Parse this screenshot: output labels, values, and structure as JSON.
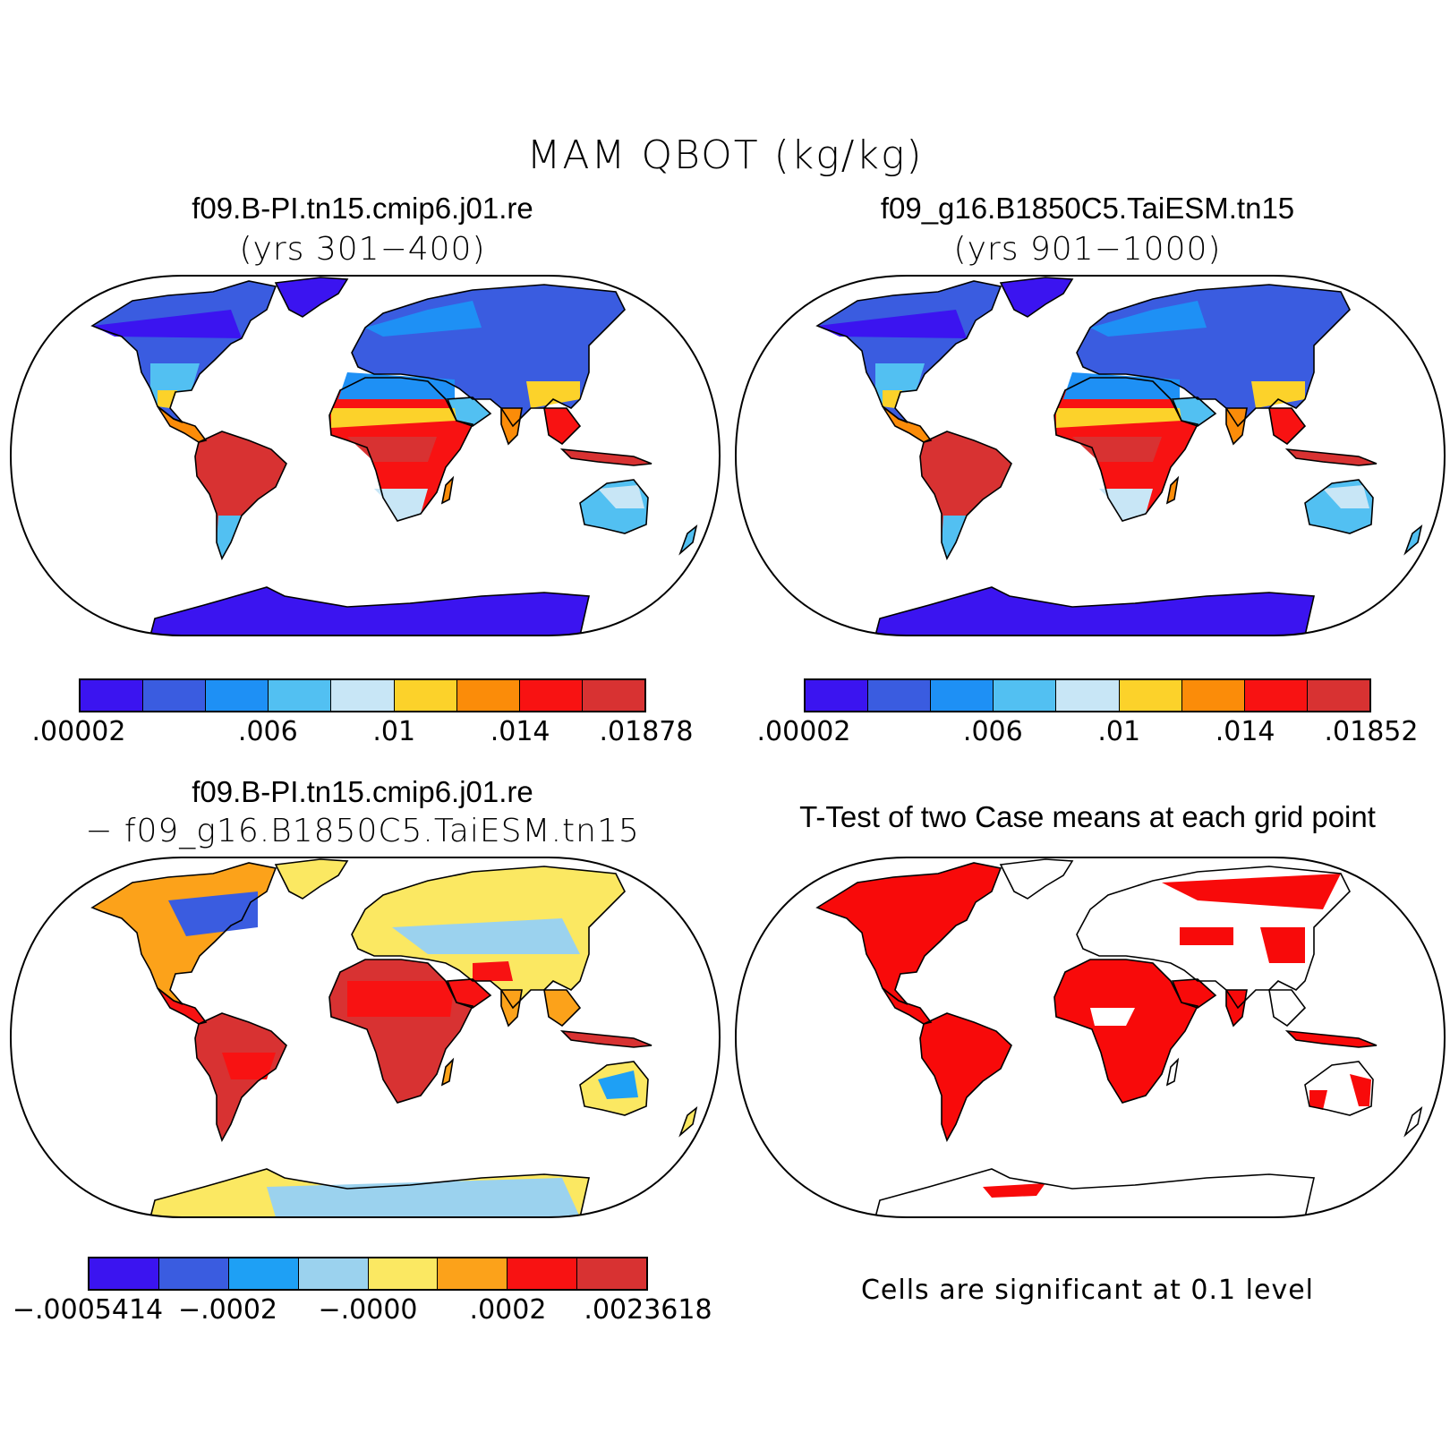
{
  "title": "MAM QBOT (kg/kg)",
  "panels": {
    "top_left": {
      "title": "f09.B-PI.tn15.cmip6.j01.re",
      "subtitle": "(yrs 301−400)",
      "colorbar": {
        "colors": [
          "#3b14f0",
          "#3a5ce0",
          "#1e90f5",
          "#52c0f2",
          "#c8e6f6",
          "#fcd22a",
          "#fb8c09",
          "#f81212",
          "#d83232"
        ],
        "tick_labels": [
          ".00002",
          ".006",
          ".01",
          ".014",
          ".01878"
        ]
      }
    },
    "top_right": {
      "title": "f09_g16.B1850C5.TaiESM.tn15",
      "subtitle": "(yrs 901−1000)",
      "colorbar": {
        "colors": [
          "#3b14f0",
          "#3a5ce0",
          "#1e90f5",
          "#52c0f2",
          "#c8e6f6",
          "#fcd22a",
          "#fb8c09",
          "#f81212",
          "#d83232"
        ],
        "tick_labels": [
          ".00002",
          ".006",
          ".01",
          ".014",
          ".01852"
        ]
      }
    },
    "bottom_left": {
      "title": "f09.B-PI.tn15.cmip6.j01.re",
      "subtitle": "− f09_g16.B1850C5.TaiESM.tn15",
      "colorbar": {
        "colors": [
          "#3b14f0",
          "#3a5ce0",
          "#1ea0f5",
          "#9bd2ee",
          "#fbe862",
          "#fca21a",
          "#f81212",
          "#d83232"
        ],
        "tick_labels": [
          "−.0005414",
          "−.0002",
          "−.0000",
          ".0002",
          ".0023618"
        ]
      }
    },
    "bottom_right": {
      "title": "T-Test of two Case means at each grid point",
      "note": "Cells are significant at 0.1 level",
      "color": "#f80a0a"
    }
  }
}
